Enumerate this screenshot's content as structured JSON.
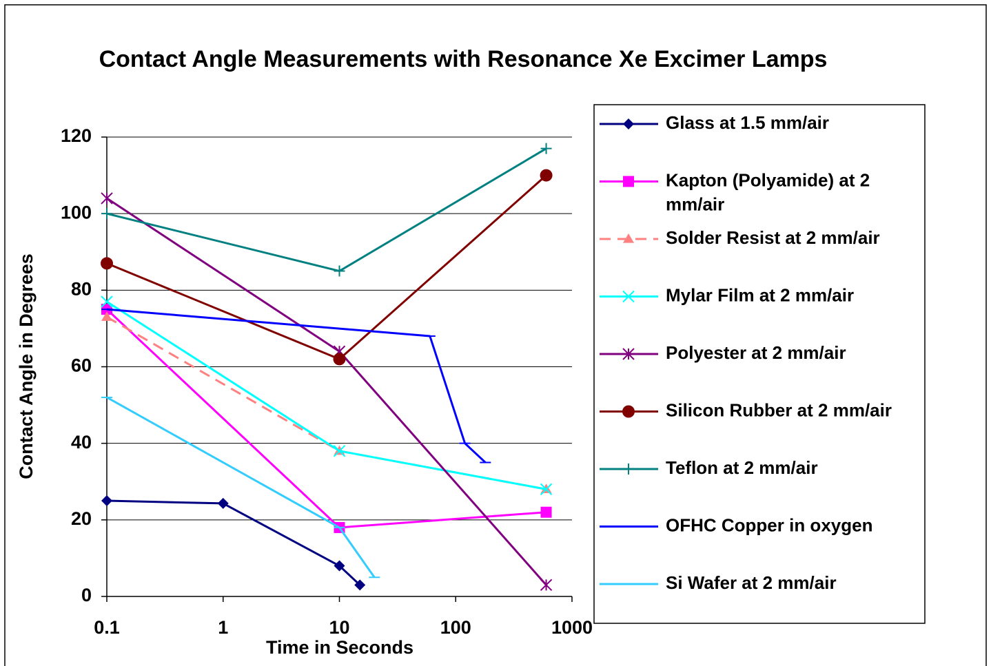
{
  "chart_data": {
    "type": "line",
    "title": "Contact Angle Measurements with Resonance Xe Excimer Lamps",
    "x_label": "Time in Seconds",
    "y_label": "Contact Angle in Degrees",
    "xscale": "log",
    "xlim": [
      0.1,
      1000
    ],
    "xticks": [
      0.1,
      1,
      10,
      100,
      1000
    ],
    "ylim": [
      0,
      120
    ],
    "yticks": [
      0,
      20,
      40,
      60,
      80,
      100,
      120
    ],
    "grid": true,
    "legend": "right",
    "series": [
      {
        "name": "Glass at 1.5 mm/air",
        "color": "#000080",
        "marker": "diamond",
        "x": [
          0.1,
          1,
          10,
          15
        ],
        "values": [
          25,
          24.3,
          8,
          3
        ]
      },
      {
        "name": "Kapton (Polyamide) at 2 mm/air",
        "color": "#ff00ff",
        "marker": "square",
        "x": [
          0.1,
          10,
          600
        ],
        "values": [
          75,
          18,
          22
        ]
      },
      {
        "name": "Solder Resist at 2 mm/air",
        "color": "#ff8080",
        "marker": "triangle",
        "dashed": true,
        "x": [
          0.1,
          10,
          600
        ],
        "values": [
          73,
          38,
          28
        ]
      },
      {
        "name": "Mylar Film at 2 mm/air",
        "color": "#00ffff",
        "marker": "x",
        "x": [
          0.1,
          10,
          600
        ],
        "values": [
          77,
          38,
          28
        ]
      },
      {
        "name": "Polyester at 2 mm/air",
        "color": "#800080",
        "marker": "star",
        "x": [
          0.1,
          10,
          600
        ],
        "values": [
          104,
          64,
          3
        ]
      },
      {
        "name": "Silicon Rubber at 2 mm/air",
        "color": "#800000",
        "marker": "circle",
        "x": [
          0.1,
          10,
          600
        ],
        "values": [
          87,
          62,
          110
        ]
      },
      {
        "name": "Teflon at 2 mm/air",
        "color": "#008080",
        "marker": "plus",
        "x": [
          0.1,
          10,
          600
        ],
        "values": [
          100,
          85,
          117
        ]
      },
      {
        "name": "OFHC Copper in oxygen",
        "color": "#0000ff",
        "marker": "dash",
        "x": [
          0.1,
          60,
          120,
          180
        ],
        "values": [
          75,
          68,
          40,
          35
        ]
      },
      {
        "name": "Si Wafer at 2 mm/air",
        "color": "#33ccff",
        "marker": "dash",
        "x": [
          0.1,
          10,
          20
        ],
        "values": [
          52,
          18,
          5
        ]
      }
    ]
  }
}
